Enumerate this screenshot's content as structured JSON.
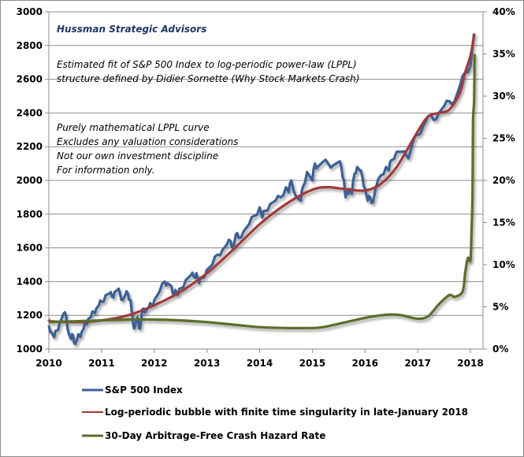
{
  "chart_data": {
    "type": "line",
    "title": "",
    "xlabel": "",
    "ylabel": "",
    "ylabel_right": "",
    "x_ticks": [
      "2010",
      "2011",
      "2012",
      "2013",
      "2014",
      "2015",
      "2016",
      "2017",
      "2018"
    ],
    "xlim": [
      2010,
      2018.25
    ],
    "y_ticks": [
      "1000",
      "1200",
      "1400",
      "1600",
      "1800",
      "2000",
      "2200",
      "2400",
      "2600",
      "2800",
      "3000"
    ],
    "ylim": [
      1000,
      3000
    ],
    "y2_ticks": [
      "0%",
      "5%",
      "10%",
      "15%",
      "20%",
      "25%",
      "30%",
      "35%",
      "40%"
    ],
    "y2lim": [
      0,
      40
    ],
    "grid": true,
    "legend_position": "bottom",
    "annotations": {
      "firm": "Hussman Strategic Advisors",
      "line1": "Estimated fit of S&P 500  Index to log-periodic power-law (LPPL)",
      "line2": "structure defined by Didier Sornette (Why Stock Markets Crash)",
      "line3": "Purely mathematical LPPL curve",
      "line4": "Excludes any valuation considerations",
      "line5": "Not our own investment discipline",
      "line6": "For information only."
    },
    "series": [
      {
        "name": "S&P 500 Index",
        "axis": "left",
        "color": "#3a6195",
        "x": [
          2010.0,
          2010.05,
          2010.1,
          2010.15,
          2010.2,
          2010.28,
          2010.33,
          2010.38,
          2010.42,
          2010.46,
          2010.5,
          2010.54,
          2010.58,
          2010.62,
          2010.66,
          2010.7,
          2010.75,
          2010.8,
          2010.85,
          2010.9,
          2010.95,
          2011.0,
          2011.08,
          2011.15,
          2011.2,
          2011.25,
          2011.3,
          2011.35,
          2011.4,
          2011.45,
          2011.5,
          2011.55,
          2011.58,
          2011.6,
          2011.63,
          2011.67,
          2011.7,
          2011.73,
          2011.76,
          2011.8,
          2011.85,
          2011.9,
          2011.95,
          2012.0,
          2012.1,
          2012.2,
          2012.25,
          2012.3,
          2012.35,
          2012.4,
          2012.45,
          2012.5,
          2012.6,
          2012.7,
          2012.75,
          2012.8,
          2012.85,
          2012.9,
          2013.0,
          2013.1,
          2013.2,
          2013.3,
          2013.38,
          2013.45,
          2013.5,
          2013.55,
          2013.6,
          2013.7,
          2013.8,
          2013.9,
          2014.0,
          2014.05,
          2014.1,
          2014.2,
          2014.3,
          2014.4,
          2014.5,
          2014.55,
          2014.6,
          2014.7,
          2014.78,
          2014.82,
          2014.9,
          2015.0,
          2015.05,
          2015.1,
          2015.2,
          2015.3,
          2015.4,
          2015.5,
          2015.55,
          2015.6,
          2015.63,
          2015.67,
          2015.7,
          2015.75,
          2015.8,
          2015.85,
          2015.9,
          2015.95,
          2016.0,
          2016.05,
          2016.1,
          2016.15,
          2016.2,
          2016.3,
          2016.4,
          2016.45,
          2016.5,
          2016.6,
          2016.7,
          2016.8,
          2016.85,
          2016.9,
          2017.0,
          2017.1,
          2017.2,
          2017.3,
          2017.4,
          2017.5,
          2017.6,
          2017.7,
          2017.8,
          2017.9,
          2018.0,
          2018.05,
          2018.08
        ],
        "values": [
          1140,
          1100,
          1070,
          1110,
          1150,
          1210,
          1190,
          1090,
          1060,
          1080,
          1030,
          1060,
          1080,
          1100,
          1120,
          1150,
          1180,
          1190,
          1220,
          1240,
          1260,
          1280,
          1320,
          1330,
          1310,
          1340,
          1350,
          1330,
          1290,
          1320,
          1330,
          1290,
          1200,
          1150,
          1130,
          1180,
          1160,
          1120,
          1200,
          1240,
          1230,
          1250,
          1260,
          1290,
          1340,
          1400,
          1390,
          1380,
          1330,
          1350,
          1320,
          1360,
          1410,
          1440,
          1430,
          1450,
          1390,
          1420,
          1470,
          1500,
          1560,
          1590,
          1620,
          1640,
          1600,
          1680,
          1660,
          1700,
          1740,
          1790,
          1840,
          1780,
          1820,
          1860,
          1880,
          1900,
          1960,
          1930,
          2000,
          1900,
          1880,
          1960,
          2050,
          2000,
          2100,
          2080,
          2110,
          2100,
          2090,
          2110,
          2080,
          2000,
          1900,
          1930,
          1950,
          1920,
          2040,
          2080,
          2060,
          2020,
          1950,
          1880,
          1900,
          1870,
          1950,
          2030,
          2080,
          2060,
          2120,
          2170,
          2170,
          2140,
          2160,
          2220,
          2270,
          2320,
          2380,
          2360,
          2400,
          2440,
          2470,
          2470,
          2560,
          2640,
          2680,
          2820,
          2870
        ]
      },
      {
        "name": "Log-periodic bubble with finite time singularity in late-January 2018",
        "axis": "left",
        "color": "#a13a3a",
        "x": [
          2010.0,
          2010.05,
          2010.5,
          2011.0,
          2011.5,
          2012.0,
          2012.5,
          2013.0,
          2013.5,
          2014.0,
          2014.5,
          2015.0,
          2015.3,
          2015.6,
          2016.0,
          2016.3,
          2016.6,
          2017.0,
          2017.2,
          2017.4,
          2017.6,
          2017.8,
          2017.9,
          2018.0,
          2018.05,
          2018.08
        ],
        "values": [
          1175,
          1165,
          1160,
          1170,
          1200,
          1260,
          1340,
          1450,
          1590,
          1740,
          1860,
          1945,
          1960,
          1950,
          1940,
          1980,
          2080,
          2290,
          2380,
          2400,
          2420,
          2520,
          2640,
          2740,
          2820,
          2870
        ]
      },
      {
        "name": "30-Day Arbitrage-Free Crash Hazard Rate",
        "axis": "right",
        "color": "#5a6e2b",
        "x": [
          2010.0,
          2010.5,
          2011.0,
          2011.5,
          2012.0,
          2012.5,
          2013.0,
          2013.5,
          2014.0,
          2014.5,
          2015.0,
          2015.2,
          2015.5,
          2016.0,
          2016.3,
          2016.5,
          2016.7,
          2017.0,
          2017.2,
          2017.4,
          2017.6,
          2017.7,
          2017.85,
          2017.9,
          2017.95,
          2018.0,
          2018.02,
          2018.04,
          2018.05,
          2018.07,
          2018.08
        ],
        "values": [
          3.2,
          3.3,
          3.4,
          3.5,
          3.5,
          3.4,
          3.2,
          2.9,
          2.6,
          2.5,
          2.5,
          2.6,
          3.0,
          3.7,
          4.0,
          4.1,
          4.0,
          3.6,
          3.9,
          5.3,
          6.4,
          6.2,
          6.8,
          9.0,
          10.8,
          10.5,
          13.5,
          18.5,
          27,
          29.5,
          35
        ]
      }
    ]
  },
  "legend": {
    "items": [
      {
        "label": "S&P 500 Index",
        "color": "#3a6195"
      },
      {
        "label": "Log-periodic bubble with finite time singularity in late-January 2018",
        "color": "#a13a3a"
      },
      {
        "label": "30-Day Arbitrage-Free Crash Hazard Rate",
        "color": "#5a6e2b"
      }
    ]
  }
}
